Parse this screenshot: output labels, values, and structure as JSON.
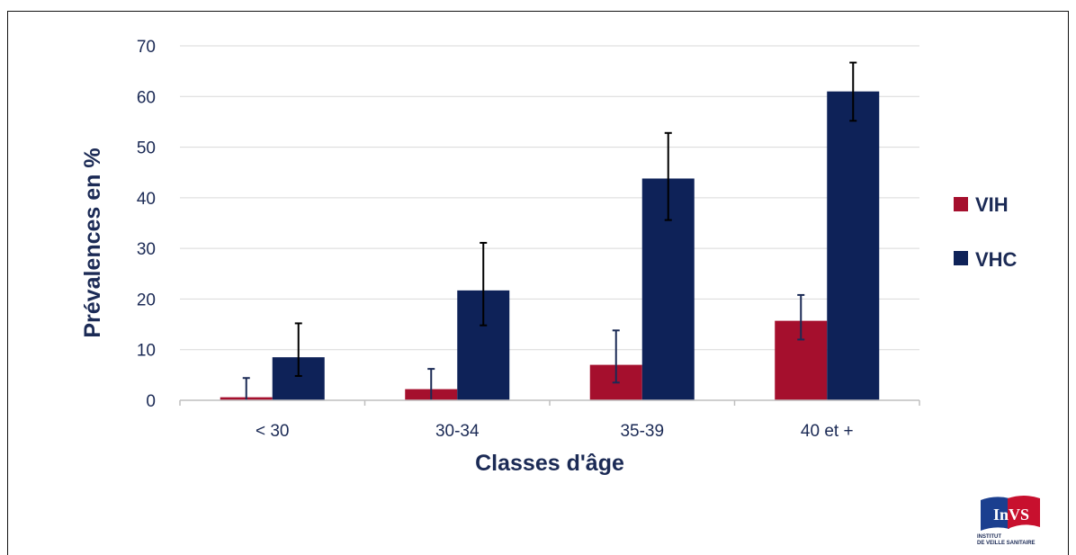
{
  "chart_data": {
    "type": "bar",
    "categories": [
      "< 30",
      "30-34",
      "35-39",
      "40 et +"
    ],
    "series": [
      {
        "name": "VIH",
        "color": "#a50f2d",
        "values": [
          0.6,
          2.2,
          7.0,
          15.7
        ],
        "error_low": [
          0,
          0,
          3.5,
          12
        ],
        "error_high": [
          4.4,
          6.2,
          13.8,
          20.8
        ]
      },
      {
        "name": "VHC",
        "color": "#0e2258",
        "values": [
          8.5,
          21.7,
          43.8,
          61.0
        ],
        "error_low": [
          4.8,
          14.8,
          35.6,
          55.2
        ],
        "error_high": [
          15.2,
          31.1,
          52.8,
          66.7
        ]
      }
    ],
    "xlabel": "Classes d'âge",
    "ylabel": "Prévalences en %",
    "ylim": [
      0,
      70
    ],
    "yticks": [
      "0",
      "10",
      "20",
      "30",
      "40",
      "50",
      "60",
      "70"
    ],
    "grid": true,
    "legend_position": "right"
  },
  "logo": {
    "text": "InVS",
    "subtitle_line1": "INSTITUT",
    "subtitle_line2": "DE VEILLE SANITAIRE"
  }
}
